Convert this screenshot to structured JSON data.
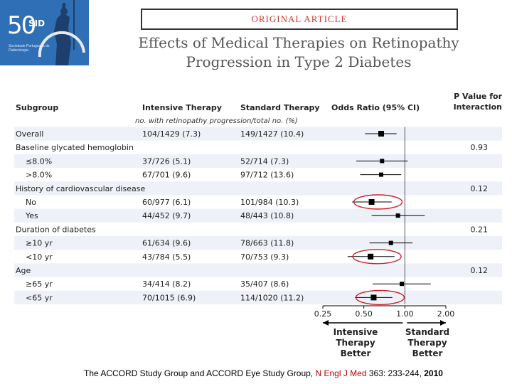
{
  "logo": {
    "number": "50",
    "brand": "SID",
    "subtitle": "Sociedade Portuguesa de Diabetologia"
  },
  "article_label": "ORIGINAL ARTICLE",
  "title_line1": "Effects of Medical Therapies on Retinopathy",
  "title_line2": "Progression in Type 2 Diabetes",
  "citation": {
    "authors": "The ACCORD Study Group and ACCORD Eye Study Group, ",
    "journal": "N Engl J Med",
    "details": " 363: 233-244, ",
    "year": "2010"
  },
  "chart_data": {
    "type": "forest",
    "headers": {
      "subgroup": "Subgroup",
      "intensive": "Intensive Therapy",
      "standard": "Standard Therapy",
      "subheader": "no. with retinopathy progression/total no. (%)",
      "or": "Odds Ratio (95% CI)",
      "p1": "P Value for",
      "p2": "Interaction"
    },
    "rows": [
      {
        "label": "Overall",
        "intensive": "104/1429 (7.3)",
        "standard": "149/1427 (10.4)",
        "or": 0.67,
        "lo": 0.51,
        "hi": 0.87,
        "p": "",
        "shade": true,
        "indent": false,
        "circled": false
      },
      {
        "label": "Baseline glycated hemoglobin",
        "intensive": "",
        "standard": "",
        "or": null,
        "p": "0.93",
        "shade": false,
        "indent": false,
        "circled": false
      },
      {
        "label": "≤8.0%",
        "intensive": "37/726 (5.1)",
        "standard": "52/714 (7.3)",
        "or": 0.68,
        "lo": 0.44,
        "hi": 1.05,
        "p": "",
        "shade": true,
        "indent": true,
        "circled": false
      },
      {
        "label": ">8.0%",
        "intensive": "67/701 (9.6)",
        "standard": "97/712 (13.6)",
        "or": 0.67,
        "lo": 0.47,
        "hi": 0.94,
        "p": "",
        "shade": false,
        "indent": true,
        "circled": false
      },
      {
        "label": "History of cardiovascular disease",
        "intensive": "",
        "standard": "",
        "or": null,
        "p": "0.12",
        "shade": true,
        "indent": false,
        "circled": false
      },
      {
        "label": "No",
        "intensive": "60/977 (6.1)",
        "standard": "101/984 (10.3)",
        "or": 0.57,
        "lo": 0.41,
        "hi": 0.8,
        "p": "",
        "shade": false,
        "indent": true,
        "circled": true
      },
      {
        "label": "Yes",
        "intensive": "44/452 (9.7)",
        "standard": "48/443 (10.8)",
        "or": 0.89,
        "lo": 0.57,
        "hi": 1.4,
        "p": "",
        "shade": true,
        "indent": true,
        "circled": false
      },
      {
        "label": "Duration of diabetes",
        "intensive": "",
        "standard": "",
        "or": null,
        "p": "0.21",
        "shade": false,
        "indent": false,
        "circled": false
      },
      {
        "label": "≥10 yr",
        "intensive": "61/634 (9.6)",
        "standard": "78/663 (11.8)",
        "or": 0.79,
        "lo": 0.55,
        "hi": 1.14,
        "p": "",
        "shade": true,
        "indent": true,
        "circled": false
      },
      {
        "label": "<10 yr",
        "intensive": "43/784 (5.5)",
        "standard": "70/753 (9.3)",
        "or": 0.56,
        "lo": 0.38,
        "hi": 0.84,
        "p": "",
        "shade": false,
        "indent": true,
        "circled": true
      },
      {
        "label": "Age",
        "intensive": "",
        "standard": "",
        "or": null,
        "p": "0.12",
        "shade": true,
        "indent": false,
        "circled": false
      },
      {
        "label": "≥65 yr",
        "intensive": "34/414 (8.2)",
        "standard": "35/407 (8.6)",
        "or": 0.95,
        "lo": 0.58,
        "hi": 1.55,
        "p": "",
        "shade": false,
        "indent": true,
        "circled": false
      },
      {
        "label": "<65 yr",
        "intensive": "70/1015 (6.9)",
        "standard": "114/1020 (11.2)",
        "or": 0.59,
        "lo": 0.43,
        "hi": 0.81,
        "p": "",
        "shade": true,
        "indent": true,
        "circled": true
      }
    ],
    "x_scale": "log",
    "x_ticks": [
      0.25,
      0.5,
      1.0,
      2.0
    ],
    "x_tick_labels": [
      "0.25",
      "0.50",
      "1.00",
      "2.00"
    ],
    "xlim": [
      0.25,
      2.0
    ],
    "reference_line": 1.0,
    "favors_left": [
      "Intensive",
      "Therapy",
      "Better"
    ],
    "favors_right": [
      "Standard",
      "Therapy",
      "Better"
    ],
    "colors": {
      "highlight": "#d0202a",
      "shade": "#eef1f8",
      "marker": "#000000"
    }
  }
}
